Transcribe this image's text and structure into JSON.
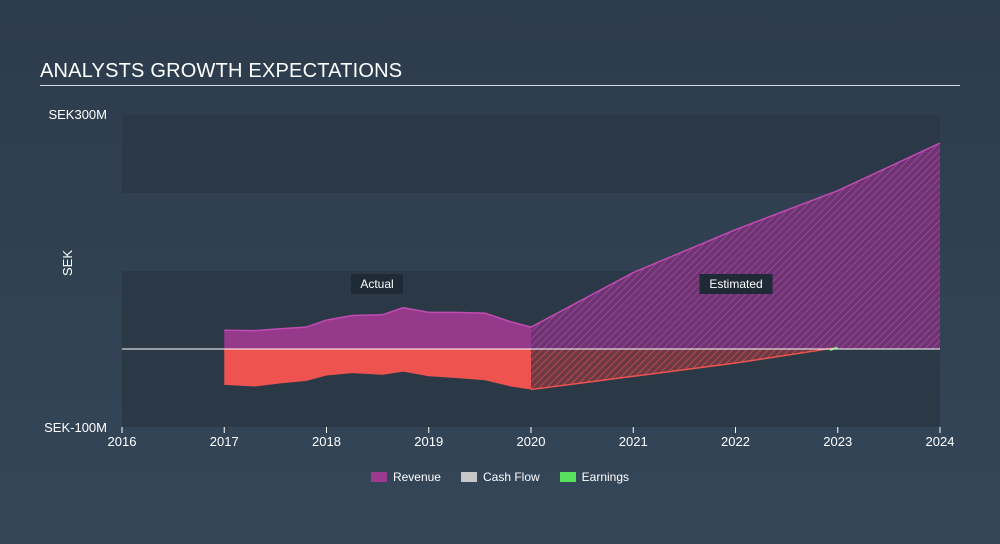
{
  "title": "ANALYSTS GROWTH EXPECTATIONS",
  "colors": {
    "revenue": "#9b3a8f",
    "revenue_line": "#c24bb2",
    "cashflow": "#c8c8c8",
    "earnings": "#58e05f",
    "negative": "#ef5350",
    "band": "#2a3745",
    "zero_line": "#ffffff"
  },
  "chart_data": {
    "type": "area",
    "title": "ANALYSTS GROWTH EXPECTATIONS",
    "ylabel": "SEK",
    "xlabel": "",
    "xlim": [
      2016,
      2024
    ],
    "ylim": [
      -100,
      300
    ],
    "y_tick_labels": [
      "SEK300M",
      "SEK-100M"
    ],
    "x_ticks": [
      "2016",
      "2017",
      "2018",
      "2019",
      "2020",
      "2021",
      "2022",
      "2023",
      "2024"
    ],
    "annotations": [
      "Actual",
      "Estimated"
    ],
    "actual_end": 2020,
    "series": [
      {
        "name": "Revenue",
        "points": [
          [
            2017.0,
            24
          ],
          [
            2017.3,
            23.5
          ],
          [
            2017.55,
            26
          ],
          [
            2017.8,
            28
          ],
          [
            2018.0,
            37
          ],
          [
            2018.25,
            43
          ],
          [
            2018.55,
            44
          ],
          [
            2018.75,
            53
          ],
          [
            2019.0,
            47
          ],
          [
            2019.25,
            47
          ],
          [
            2019.55,
            46
          ],
          [
            2019.8,
            35
          ],
          [
            2020.0,
            28
          ],
          [
            2021.0,
            98
          ],
          [
            2022.0,
            153
          ],
          [
            2023.0,
            203
          ],
          [
            2024.0,
            264
          ]
        ]
      },
      {
        "name": "Cash Flow",
        "points": []
      },
      {
        "name": "Earnings",
        "points": [
          [
            2017.0,
            -46
          ],
          [
            2017.3,
            -48
          ],
          [
            2017.55,
            -44
          ],
          [
            2017.8,
            -41
          ],
          [
            2018.0,
            -34
          ],
          [
            2018.25,
            -31
          ],
          [
            2018.55,
            -33
          ],
          [
            2018.75,
            -29
          ],
          [
            2019.0,
            -35
          ],
          [
            2019.25,
            -37
          ],
          [
            2019.55,
            -40
          ],
          [
            2019.8,
            -48
          ],
          [
            2020.0,
            -52
          ],
          [
            2021.0,
            -35
          ],
          [
            2022.0,
            -18
          ],
          [
            2023.0,
            2
          ]
        ]
      }
    ],
    "legend": [
      {
        "label": "Revenue",
        "color": "#9b3a8f"
      },
      {
        "label": "Cash Flow",
        "color": "#c8c8c8"
      },
      {
        "label": "Earnings",
        "color": "#58e05f"
      }
    ]
  }
}
